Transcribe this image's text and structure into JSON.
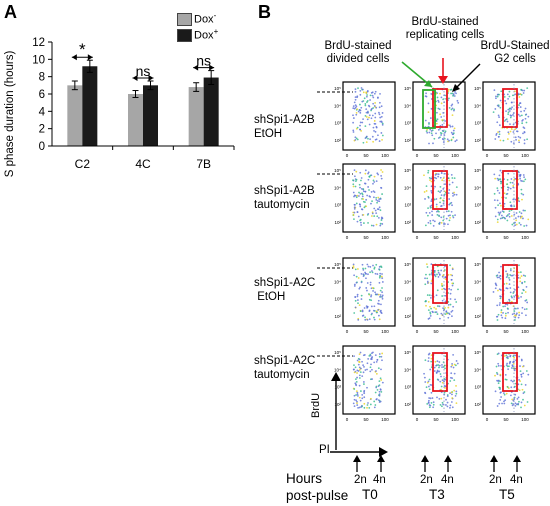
{
  "panel_a_label": "A",
  "panel_b_label": "B",
  "chart_data": [
    {
      "type": "bar",
      "title": "",
      "xlabel": "",
      "ylabel": "S phase duration (hours)",
      "ylim": [
        0,
        12
      ],
      "yticks": [
        "0",
        "2",
        "4",
        "6",
        "8",
        "10",
        "12"
      ],
      "categories": [
        "C2",
        "4C",
        "7B"
      ],
      "series": [
        {
          "name": "Dox-",
          "color": "#a6a6a6",
          "values": [
            7.0,
            6.0,
            6.8
          ],
          "errors": [
            0.5,
            0.4,
            0.5
          ]
        },
        {
          "name": "Dox+",
          "color": "#1a1a1a",
          "values": [
            9.2,
            7.0,
            7.9
          ],
          "errors": [
            0.7,
            0.5,
            0.8
          ]
        }
      ],
      "legend": {
        "items": [
          {
            "base": "Dox",
            "sup": "-"
          },
          {
            "base": "Dox",
            "sup": "+"
          }
        ],
        "placement": "top-right"
      },
      "significance": [
        "*",
        "ns",
        "ns"
      ],
      "grid": false
    }
  ],
  "panel_b": {
    "column_headers": [
      "BrdU-stained\ndivided cells",
      "BrdU-stained\nreplicating cells",
      "BrdU-Stained\nG2 cells"
    ],
    "row_labels": [
      "shSpi1-A2B\nEtOH",
      "shSpi1-A2B\ntautomycin",
      "shSpi1-A2C\n EtOH",
      "shSpi1-A2C\ntautomycin"
    ],
    "plot_y_ticks": [
      "10²",
      "10³",
      "10⁴",
      "10⁵"
    ],
    "plot_x_ticks": [
      "0",
      "50",
      "100"
    ],
    "y_axis_label": "BrdU",
    "x_axis_label": "PI",
    "dna_content_labels": [
      "2n",
      "4n"
    ],
    "footer_label": "Hours\npost-pulse",
    "timepoints": [
      "T0",
      "T3",
      "T5"
    ],
    "colors": {
      "gate": "#e8141e",
      "green_arrow": "#2eaa2e",
      "red_arrow": "#e8141e",
      "cells_low": "#5b6fd6",
      "cells_mid": "#2fb98c",
      "cells_high": "#e9d21b"
    }
  }
}
